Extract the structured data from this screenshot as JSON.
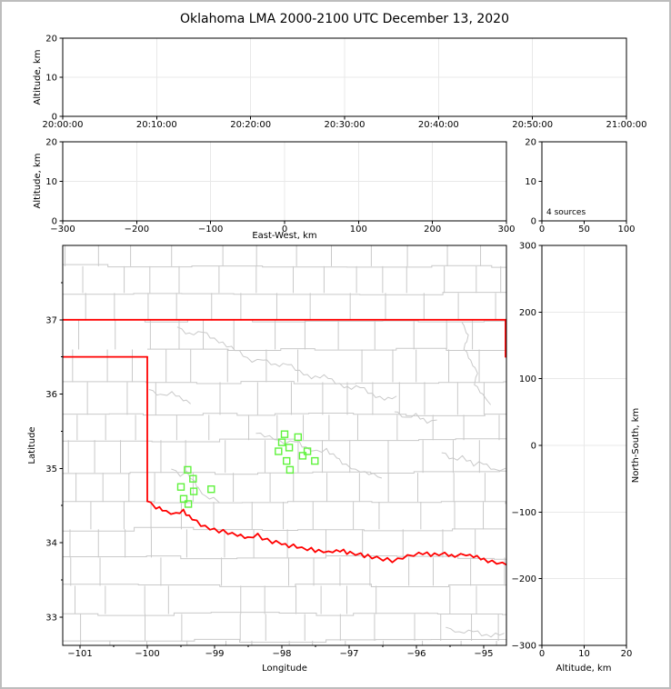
{
  "title": "Oklahoma LMA 2000-2100 UTC December 13, 2020",
  "colors": {
    "background": "#FFFFFF",
    "figure_border": "#BDBDBD",
    "axis": "#000000",
    "gridline": "#E8E8E8",
    "county_line": "#C9C9C9",
    "state_border": "#FF0000",
    "source_marker": "#5FF23C"
  },
  "panels": {
    "time_height": {
      "ylabel": "Altitude, km",
      "ylim": [
        0,
        20
      ],
      "yticks": [
        "0",
        "10",
        "20"
      ],
      "xticks": [
        "20:00:00",
        "20:10:00",
        "20:20:00",
        "20:30:00",
        "20:40:00",
        "20:50:00",
        "21:00:00"
      ]
    },
    "east_west": {
      "xlabel": "East-West, km",
      "ylabel": "Altitude, km",
      "ylim": [
        0,
        20
      ],
      "xlim": [
        -300,
        300
      ],
      "xticks": [
        "−300",
        "−200",
        "−100",
        "0",
        "100",
        "200",
        "300"
      ],
      "yticks": [
        "0",
        "10",
        "20"
      ]
    },
    "histogram": {
      "annotation": "4 sources",
      "xlim": [
        0,
        100
      ],
      "ylim": [
        0,
        20
      ],
      "xticks": [
        "0",
        "50",
        "100"
      ],
      "yticks": [
        "0",
        "10",
        "20"
      ]
    },
    "map": {
      "xlabel": "Longitude",
      "ylabel": "Latitude",
      "xticks": [
        "−101",
        "−100",
        "−99",
        "−98",
        "−97",
        "−96",
        "−95"
      ],
      "yticks": [
        "33",
        "34",
        "35",
        "36",
        "37"
      ],
      "lon_range": [
        -101.257,
        -94.662
      ],
      "lat_range": [
        32.618,
        38.0
      ]
    },
    "north_south": {
      "xlabel": "Altitude, km",
      "ylabel": "North-South, km",
      "xlim": [
        0,
        20
      ],
      "ylim": [
        -300,
        300
      ],
      "xticks": [
        "0",
        "10",
        "20"
      ],
      "yticks": [
        "300",
        "200",
        "100",
        "0",
        "−100",
        "−200",
        "−300"
      ]
    }
  },
  "chart_data": {
    "type": "scatter",
    "title": "Oklahoma LMA 2000-2100 UTC December 13, 2020",
    "annotation": "4 sources",
    "source_count": 4,
    "map_markers": {
      "marker": "open-square",
      "color": "#5FF23C",
      "lonlat": [
        [
          -99.4,
          34.98
        ],
        [
          -99.32,
          34.86
        ],
        [
          -99.5,
          34.75
        ],
        [
          -99.31,
          34.69
        ],
        [
          -99.05,
          34.72
        ],
        [
          -99.46,
          34.59
        ],
        [
          -99.39,
          34.52
        ],
        [
          -97.96,
          35.46
        ],
        [
          -97.76,
          35.42
        ],
        [
          -98.0,
          35.35
        ],
        [
          -98.05,
          35.23
        ],
        [
          -97.89,
          35.28
        ],
        [
          -97.69,
          35.17
        ],
        [
          -97.62,
          35.23
        ],
        [
          -97.93,
          35.1
        ],
        [
          -97.51,
          35.1
        ],
        [
          -97.88,
          34.98
        ]
      ]
    },
    "state_boundary": {
      "kansas_border": [
        [
          -101.257,
          37.0
        ],
        [
          -94.662,
          37.0
        ]
      ],
      "east_border": [
        [
          -94.675,
          37.0
        ],
        [
          -94.675,
          36.5
        ]
      ],
      "panhandle_south": [
        [
          -101.257,
          36.5
        ],
        [
          -100.0,
          36.5
        ]
      ],
      "meridian_100": [
        [
          -100.0,
          36.5
        ],
        [
          -100.0,
          34.557
        ]
      ],
      "red_river": [
        [
          -100.0,
          34.557
        ],
        [
          -99.88,
          34.48
        ],
        [
          -99.72,
          34.42
        ],
        [
          -99.58,
          34.39
        ],
        [
          -99.46,
          34.42
        ],
        [
          -99.33,
          34.32
        ],
        [
          -99.21,
          34.24
        ],
        [
          -99.06,
          34.2
        ],
        [
          -98.94,
          34.16
        ],
        [
          -98.8,
          34.13
        ],
        [
          -98.66,
          34.11
        ],
        [
          -98.5,
          34.06
        ],
        [
          -98.36,
          34.1
        ],
        [
          -98.22,
          34.03
        ],
        [
          -98.08,
          34.0
        ],
        [
          -97.94,
          33.97
        ],
        [
          -97.78,
          33.94
        ],
        [
          -97.62,
          33.92
        ],
        [
          -97.46,
          33.89
        ],
        [
          -97.3,
          33.87
        ],
        [
          -97.14,
          33.9
        ],
        [
          -96.98,
          33.86
        ],
        [
          -96.82,
          33.84
        ],
        [
          -96.66,
          33.8
        ],
        [
          -96.5,
          33.78
        ],
        [
          -96.35,
          33.76
        ],
        [
          -96.2,
          33.8
        ],
        [
          -96.05,
          33.84
        ],
        [
          -95.9,
          33.86
        ],
        [
          -95.74,
          33.83
        ],
        [
          -95.58,
          33.85
        ],
        [
          -95.42,
          33.82
        ],
        [
          -95.26,
          33.84
        ],
        [
          -95.1,
          33.8
        ],
        [
          -94.94,
          33.76
        ],
        [
          -94.8,
          33.73
        ],
        [
          -94.66,
          33.7
        ]
      ]
    },
    "rivers": [
      [
        [
          -99.55,
          36.9
        ],
        [
          -99.37,
          36.8
        ],
        [
          -99.18,
          36.84
        ],
        [
          -99.0,
          36.74
        ],
        [
          -98.82,
          36.65
        ],
        [
          -98.63,
          36.57
        ],
        [
          -98.45,
          36.44
        ],
        [
          -98.28,
          36.47
        ],
        [
          -98.1,
          36.38
        ],
        [
          -97.92,
          36.41
        ],
        [
          -97.74,
          36.3
        ],
        [
          -97.56,
          36.22
        ],
        [
          -97.38,
          36.25
        ],
        [
          -97.2,
          36.16
        ],
        [
          -97.02,
          36.08
        ],
        [
          -96.84,
          36.1
        ],
        [
          -96.66,
          36.0
        ],
        [
          -96.48,
          35.93
        ],
        [
          -96.3,
          35.97
        ]
      ],
      [
        [
          -99.97,
          36.06
        ],
        [
          -99.8,
          35.98
        ],
        [
          -99.63,
          36.01
        ],
        [
          -99.47,
          35.92
        ],
        [
          -99.36,
          35.87
        ]
      ],
      [
        [
          -99.64,
          34.99
        ],
        [
          -99.51,
          34.9
        ],
        [
          -99.42,
          34.94
        ],
        [
          -99.3,
          34.82
        ],
        [
          -99.24,
          34.72
        ],
        [
          -99.14,
          34.62
        ],
        [
          -99.01,
          34.59
        ],
        [
          -98.93,
          34.54
        ]
      ],
      [
        [
          -98.38,
          35.47
        ],
        [
          -98.12,
          35.4
        ],
        [
          -97.96,
          35.34
        ],
        [
          -97.8,
          35.37
        ],
        [
          -97.64,
          35.28
        ],
        [
          -97.49,
          35.22
        ],
        [
          -97.34,
          35.25
        ],
        [
          -97.19,
          35.15
        ],
        [
          -97.05,
          35.04
        ],
        [
          -96.9,
          34.97
        ],
        [
          -96.7,
          34.94
        ],
        [
          -96.52,
          34.87
        ]
      ],
      [
        [
          -95.32,
          36.96
        ],
        [
          -95.23,
          36.78
        ],
        [
          -95.29,
          36.61
        ],
        [
          -95.19,
          36.44
        ],
        [
          -95.09,
          36.29
        ],
        [
          -95.13,
          36.14
        ],
        [
          -95.01,
          35.99
        ],
        [
          -94.9,
          35.86
        ]
      ],
      [
        [
          -95.56,
          32.86
        ],
        [
          -95.36,
          32.78
        ],
        [
          -95.16,
          32.82
        ],
        [
          -94.96,
          32.74
        ],
        [
          -94.7,
          32.78
        ]
      ],
      [
        [
          -95.62,
          35.21
        ],
        [
          -95.46,
          35.12
        ],
        [
          -95.31,
          35.15
        ],
        [
          -95.15,
          35.05
        ],
        [
          -95.0,
          35.08
        ],
        [
          -94.85,
          34.98
        ],
        [
          -94.68,
          35.0
        ]
      ],
      [
        [
          -96.32,
          35.76
        ],
        [
          -96.16,
          35.68
        ],
        [
          -96.0,
          35.72
        ],
        [
          -95.84,
          35.62
        ],
        [
          -95.7,
          35.65
        ]
      ]
    ]
  }
}
